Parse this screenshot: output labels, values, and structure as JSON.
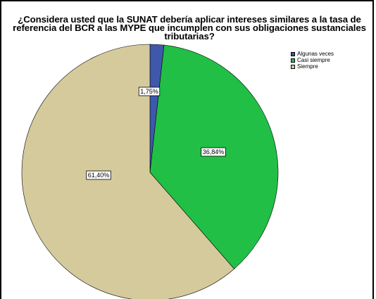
{
  "chart_data": {
    "type": "pie",
    "title_lines": [
      "¿Considera usted que la SUNAT debería aplicar intereses similares a la tasa de",
      "referencia del BCR a las MYPE que incumplen con sus obligaciones sustanciales",
      "tributarias?"
    ],
    "categories": [
      "Algunas veces",
      "Casi siempre",
      "Siempre"
    ],
    "values": [
      1.75,
      36.84,
      61.4
    ],
    "data_labels": [
      "1,75%",
      "36,84%",
      "61,40%"
    ],
    "colors": [
      "#3E58AC",
      "#21BF46",
      "#D5CA9B"
    ],
    "legend_position": "top-right",
    "start_angle": "12 o'clock",
    "direction": "clockwise"
  }
}
